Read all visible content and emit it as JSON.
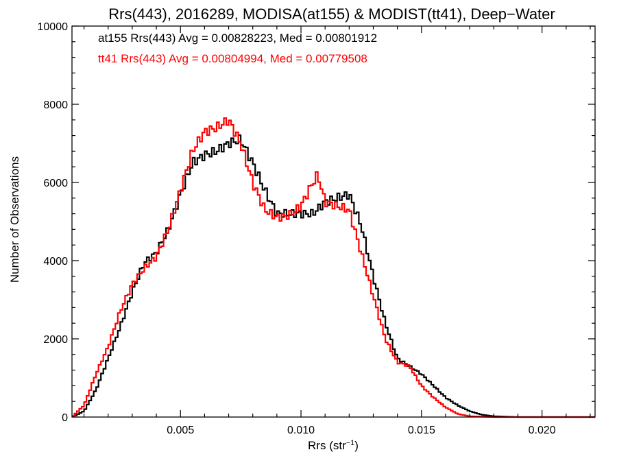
{
  "chart_data": {
    "type": "line",
    "title": "Rrs(443), 2016289, MODISA(at155) & MODIST(tt41), Deep−Water",
    "xlabel_main": "Rrs (str",
    "xlabel_sup": "−1",
    "xlabel_end": ")",
    "ylabel": "Number of Observations",
    "xlim": [
      0.0005,
      0.0222
    ],
    "ylim": [
      0,
      10000
    ],
    "x_ticks": [
      0.005,
      0.01,
      0.015,
      0.02
    ],
    "x_tick_labels": [
      "0.005",
      "0.010",
      "0.015",
      "0.020"
    ],
    "x_minor_step": 0.001,
    "y_ticks": [
      0,
      2000,
      4000,
      6000,
      8000,
      10000
    ],
    "y_tick_labels": [
      "0",
      "2000",
      "4000",
      "6000",
      "8000",
      "10000"
    ],
    "y_minor_step": 400,
    "grid": false,
    "step_width": 0.0001,
    "annotations": [
      {
        "text": "at155 Rrs(443) Avg = 0.00828223, Med = 0.00801912",
        "color": "#000000"
      },
      {
        "text": "tt41 Rrs(443) Avg = 0.00804994, Med = 0.00779508",
        "color": "#ff0000"
      }
    ],
    "series": [
      {
        "name": "at155",
        "color": "#000000",
        "x": [
          0.0005,
          0.001,
          0.0015,
          0.002,
          0.0025,
          0.003,
          0.0035,
          0.004,
          0.0045,
          0.005,
          0.0055,
          0.006,
          0.0065,
          0.007,
          0.0075,
          0.008,
          0.0085,
          0.009,
          0.0095,
          0.01,
          0.0105,
          0.011,
          0.0115,
          0.012,
          0.0125,
          0.013,
          0.0135,
          0.014,
          0.0145,
          0.015,
          0.0155,
          0.016,
          0.0165,
          0.017,
          0.0175,
          0.018,
          0.0185,
          0.019,
          0.02,
          0.022
        ],
        "y": [
          0,
          150,
          700,
          1500,
          2300,
          3200,
          3950,
          4200,
          4800,
          5700,
          6500,
          6700,
          6800,
          7000,
          7100,
          6500,
          5800,
          5200,
          5200,
          5200,
          5200,
          5500,
          5600,
          5700,
          4900,
          3600,
          2400,
          1500,
          1300,
          1100,
          800,
          500,
          300,
          150,
          60,
          20,
          10,
          0,
          0,
          0
        ]
      },
      {
        "name": "tt41",
        "color": "#ff0000",
        "x": [
          0.0005,
          0.001,
          0.0015,
          0.002,
          0.0025,
          0.003,
          0.0035,
          0.004,
          0.0045,
          0.005,
          0.0055,
          0.006,
          0.0065,
          0.007,
          0.0075,
          0.008,
          0.0085,
          0.009,
          0.0095,
          0.01,
          0.0105,
          0.0107,
          0.011,
          0.0115,
          0.012,
          0.0125,
          0.013,
          0.0135,
          0.014,
          0.0145,
          0.015,
          0.0155,
          0.016,
          0.0165,
          0.017,
          0.0175,
          0.018,
          0.019,
          0.02,
          0.022
        ],
        "y": [
          0,
          300,
          1100,
          1800,
          2700,
          3400,
          3800,
          4100,
          4800,
          5800,
          6800,
          7300,
          7400,
          7600,
          7000,
          6000,
          5300,
          5100,
          5150,
          5400,
          6000,
          6200,
          5500,
          5400,
          5300,
          4200,
          3100,
          2000,
          1400,
          1300,
          800,
          500,
          250,
          80,
          20,
          10,
          0,
          0,
          0,
          0
        ]
      }
    ]
  }
}
